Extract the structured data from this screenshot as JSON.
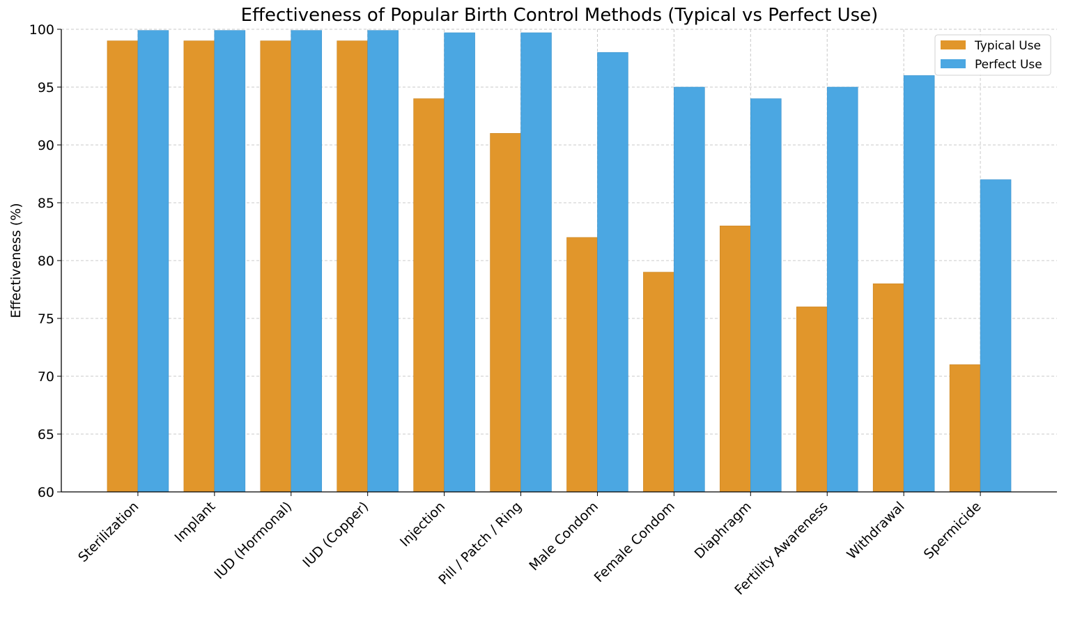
{
  "chart_data": {
    "type": "bar",
    "title": "Effectiveness of Popular Birth Control Methods (Typical vs Perfect Use)",
    "xlabel": "",
    "ylabel": "Effectiveness (%)",
    "ylim": [
      60,
      100
    ],
    "yticks": [
      60,
      65,
      70,
      75,
      80,
      85,
      90,
      95,
      100
    ],
    "grid": true,
    "legend_position": "top-right",
    "categories": [
      "Sterilization",
      "Implant",
      "IUD (Hormonal)",
      "IUD (Copper)",
      "Injection",
      "Pill / Patch / Ring",
      "Male Condom",
      "Female Condom",
      "Diaphragm",
      "Fertility Awareness",
      "Withdrawal",
      "Spermicide"
    ],
    "series": [
      {
        "name": "Typical Use",
        "color": "#E1962B",
        "values": [
          99,
          99,
          99,
          99,
          94,
          91,
          82,
          79,
          83,
          76,
          78,
          71
        ]
      },
      {
        "name": "Perfect Use",
        "color": "#4BA7E2",
        "values": [
          99.9,
          99.9,
          99.9,
          99.9,
          99.7,
          99.7,
          98,
          95,
          94,
          95,
          96,
          87
        ]
      }
    ]
  }
}
